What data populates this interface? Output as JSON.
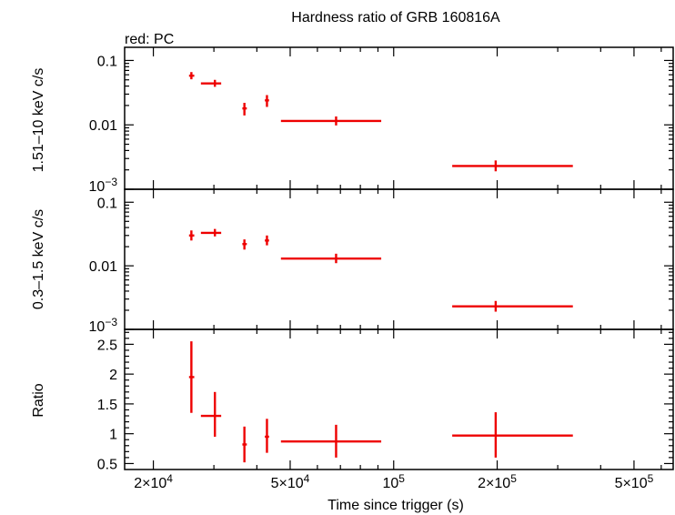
{
  "chart_data": {
    "type": "scatter",
    "title": "Hardness ratio of GRB 160816A",
    "legend": "red: PC",
    "xlabel": "Time since trigger (s)",
    "xscale": "log",
    "xlim": [
      16500,
      650000
    ],
    "x_ticks": [
      {
        "value": 20000,
        "mant": "2×10",
        "exp": "4"
      },
      {
        "value": 50000,
        "mant": "5×10",
        "exp": "4"
      },
      {
        "value": 100000,
        "mant": "10",
        "exp": "5"
      },
      {
        "value": 200000,
        "mant": "2×10",
        "exp": "5"
      },
      {
        "value": 500000,
        "mant": "5×10",
        "exp": "5"
      }
    ],
    "series_color": "#ee0000",
    "panels": [
      {
        "id": "hard",
        "ylabel": "1.51–10 keV c/s",
        "yscale": "log",
        "ylim": [
          0.001,
          0.16
        ],
        "y_ticks": [
          {
            "value": 0.1,
            "label": "0.1"
          },
          {
            "value": 0.01,
            "label": "0.01"
          },
          {
            "value": 0.001,
            "mant": "10",
            "exp": "−3"
          }
        ],
        "points": [
          {
            "x": 25800,
            "xlo": 25400,
            "xhi": 26300,
            "y": 0.058,
            "ylo": 0.051,
            "yhi": 0.066
          },
          {
            "x": 30200,
            "xlo": 27500,
            "xhi": 31500,
            "y": 0.044,
            "ylo": 0.039,
            "yhi": 0.05
          },
          {
            "x": 36800,
            "xlo": 36300,
            "xhi": 37400,
            "y": 0.018,
            "ylo": 0.014,
            "yhi": 0.022
          },
          {
            "x": 42800,
            "xlo": 42200,
            "xhi": 43400,
            "y": 0.024,
            "ylo": 0.019,
            "yhi": 0.029
          },
          {
            "x": 68000,
            "xlo": 47000,
            "xhi": 92000,
            "y": 0.0115,
            "ylo": 0.0098,
            "yhi": 0.0135
          },
          {
            "x": 198000,
            "xlo": 148000,
            "xhi": 332000,
            "y": 0.0023,
            "ylo": 0.0019,
            "yhi": 0.0028
          }
        ]
      },
      {
        "id": "soft",
        "ylabel": "0.3–1.5 keV c/s",
        "yscale": "log",
        "ylim": [
          0.001,
          0.16
        ],
        "y_ticks": [
          {
            "value": 0.1,
            "label": "0.1"
          },
          {
            "value": 0.01,
            "label": "0.01"
          },
          {
            "value": 0.001,
            "mant": "10",
            "exp": "−3"
          }
        ],
        "points": [
          {
            "x": 25800,
            "xlo": 25400,
            "xhi": 26300,
            "y": 0.03,
            "ylo": 0.025,
            "yhi": 0.036
          },
          {
            "x": 30200,
            "xlo": 27500,
            "xhi": 31500,
            "y": 0.033,
            "ylo": 0.029,
            "yhi": 0.038
          },
          {
            "x": 36800,
            "xlo": 36300,
            "xhi": 37400,
            "y": 0.022,
            "ylo": 0.018,
            "yhi": 0.026
          },
          {
            "x": 42800,
            "xlo": 42200,
            "xhi": 43400,
            "y": 0.025,
            "ylo": 0.021,
            "yhi": 0.03
          },
          {
            "x": 68000,
            "xlo": 47000,
            "xhi": 92000,
            "y": 0.013,
            "ylo": 0.011,
            "yhi": 0.0155
          },
          {
            "x": 198000,
            "xlo": 148000,
            "xhi": 332000,
            "y": 0.0023,
            "ylo": 0.0019,
            "yhi": 0.0028
          }
        ]
      },
      {
        "id": "ratio",
        "ylabel": "Ratio",
        "yscale": "linear",
        "ylim": [
          0.4,
          2.75
        ],
        "y_ticks": [
          {
            "value": 0.5,
            "label": "0.5"
          },
          {
            "value": 1,
            "label": "1"
          },
          {
            "value": 1.5,
            "label": "1.5"
          },
          {
            "value": 2,
            "label": "2"
          },
          {
            "value": 2.5,
            "label": "2.5"
          }
        ],
        "points": [
          {
            "x": 25800,
            "xlo": 25400,
            "xhi": 26300,
            "y": 1.95,
            "ylo": 1.35,
            "yhi": 2.55
          },
          {
            "x": 30200,
            "xlo": 27500,
            "xhi": 31500,
            "y": 1.3,
            "ylo": 0.95,
            "yhi": 1.7
          },
          {
            "x": 36800,
            "xlo": 36300,
            "xhi": 37400,
            "y": 0.82,
            "ylo": 0.52,
            "yhi": 1.12
          },
          {
            "x": 42800,
            "xlo": 42200,
            "xhi": 43400,
            "y": 0.95,
            "ylo": 0.68,
            "yhi": 1.25
          },
          {
            "x": 68000,
            "xlo": 47000,
            "xhi": 92000,
            "y": 0.87,
            "ylo": 0.6,
            "yhi": 1.15
          },
          {
            "x": 198000,
            "xlo": 148000,
            "xhi": 332000,
            "y": 0.97,
            "ylo": 0.6,
            "yhi": 1.36
          }
        ]
      }
    ]
  }
}
